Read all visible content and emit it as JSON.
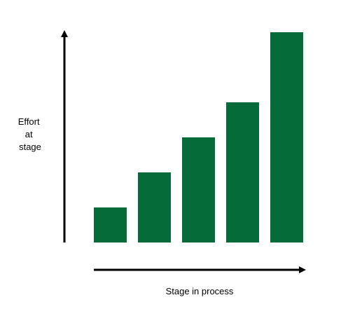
{
  "chart_data": {
    "type": "bar",
    "categories": [
      "",
      "",
      "",
      "",
      ""
    ],
    "values": [
      1,
      2,
      3,
      4,
      6
    ],
    "ylim": [
      0,
      6
    ],
    "xlabel": "Stage in process",
    "ylabel_lines": [
      "Effort",
      "at",
      "stage"
    ],
    "grid": false,
    "legend": "none",
    "colors": {
      "bar": "#046b39",
      "axis": "#000000"
    }
  }
}
